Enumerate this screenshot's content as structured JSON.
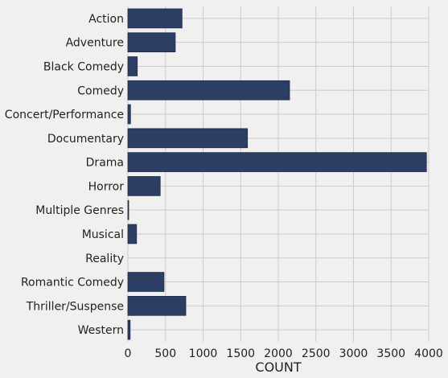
{
  "chart_data": {
    "type": "bar",
    "orientation": "horizontal",
    "categories": [
      "Action",
      "Adventure",
      "Black Comedy",
      "Comedy",
      "Concert/Performance",
      "Documentary",
      "Drama",
      "Horror",
      "Multiple Genres",
      "Musical",
      "Reality",
      "Romantic Comedy",
      "Thriller/Suspense",
      "Western"
    ],
    "values": [
      720,
      630,
      125,
      2150,
      35,
      1590,
      3970,
      430,
      5,
      115,
      0,
      480,
      770,
      30
    ],
    "title": "",
    "xlabel": "COUNT",
    "ylabel": "",
    "xlim": [
      0,
      4000
    ],
    "xticks": [
      0,
      500,
      1000,
      1500,
      2000,
      2500,
      3000,
      3500,
      4000
    ],
    "grid": true,
    "legend": "none",
    "colors": {
      "bar": "#2c3e63",
      "bar_edge": "#1f2d4a",
      "background": "#f0f0f0",
      "grid": "#cbcbcb",
      "text": "#222222"
    }
  }
}
